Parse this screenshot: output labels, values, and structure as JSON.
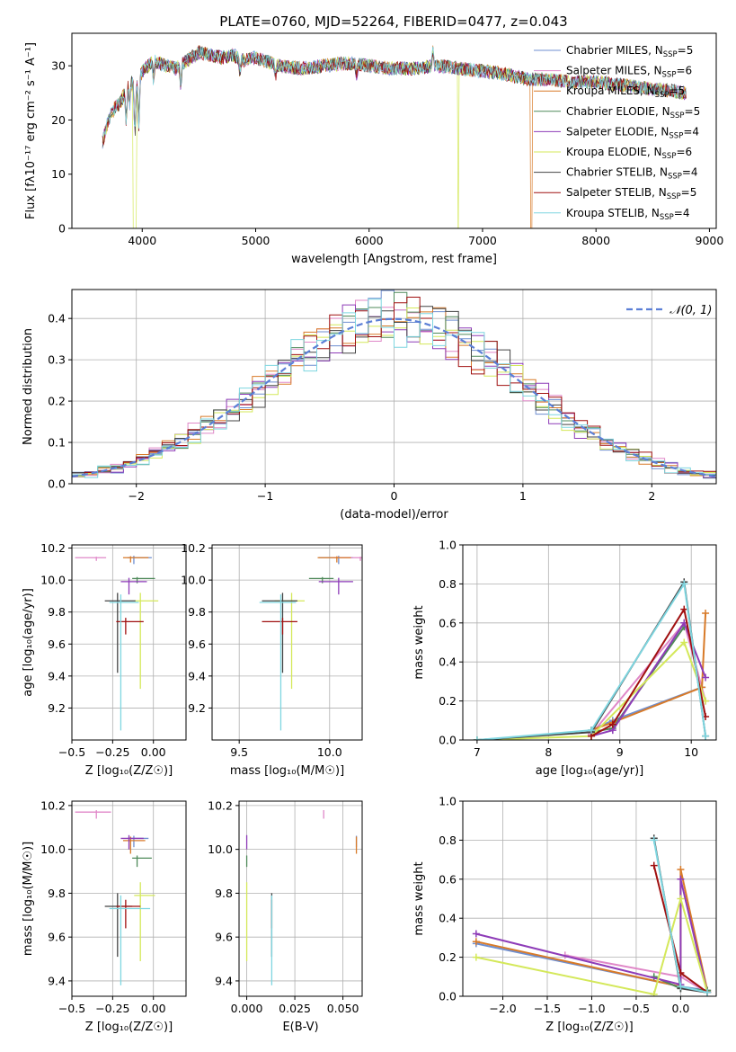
{
  "figure_title": "PLATE=0760, MJD=52264, FIBERID=0477, z=0.043",
  "colors": {
    "Chabrier MILES": "#6f8fd0",
    "Salpeter MILES": "#e088c8",
    "Kroupa MILES": "#d87a28",
    "Chabrier ELODIE": "#4f8a5a",
    "Salpeter ELODIE": "#8e3cb8",
    "Kroupa ELODIE": "#d4e85a",
    "Chabrier STELIB": "#444444",
    "Salpeter STELIB": "#a01010",
    "Kroupa STELIB": "#7ed6e0"
  },
  "chart_data": [
    {
      "type": "line",
      "title": "PLATE=0760, MJD=52264, FIBERID=0477, z=0.043",
      "xlabel": "wavelength [Angstrom, rest frame]",
      "ylabel": "Flux [fλ10⁻¹⁷ erg cm⁻² s⁻¹ A⁻¹]",
      "xlim": [
        3380,
        9060
      ],
      "ylim": [
        0,
        36
      ],
      "xticks": [
        4000,
        5000,
        6000,
        7000,
        8000,
        9000
      ],
      "yticks": [
        0,
        10,
        20,
        30
      ],
      "grid": false,
      "legend_placement": "top-right",
      "legend": [
        {
          "name": "Chabrier MILES",
          "sub": "SSP",
          "n": "5"
        },
        {
          "name": "Salpeter MILES",
          "sub": "SSP",
          "n": "6"
        },
        {
          "name": "Kroupa MILES",
          "sub": "SSP",
          "n": "5"
        },
        {
          "name": "Chabrier ELODIE",
          "sub": "SSP",
          "n": "5"
        },
        {
          "name": "Salpeter ELODIE",
          "sub": "SSP",
          "n": "4"
        },
        {
          "name": "Kroupa ELODIE",
          "sub": "SSP",
          "n": "6"
        },
        {
          "name": "Chabrier STELIB",
          "sub": "SSP",
          "n": "4"
        },
        {
          "name": "Salpeter STELIB",
          "sub": "SSP",
          "n": "5"
        },
        {
          "name": "Kroupa STELIB",
          "sub": "SSP",
          "n": "4"
        }
      ],
      "spectrum_envelope": {
        "x": [
          3650,
          3700,
          3750,
          3800,
          3850,
          3900,
          3950,
          4000,
          4050,
          4100,
          4200,
          4300,
          4400,
          4500,
          4600,
          4700,
          4800,
          4900,
          5000,
          5200,
          5400,
          5600,
          5800,
          6000,
          6200,
          6400,
          6600,
          6800,
          7000,
          7200,
          7400,
          7600,
          7800,
          8000,
          8200,
          8400,
          8600,
          8800
        ],
        "y": [
          16,
          20,
          22,
          23,
          25,
          27,
          26,
          29,
          30,
          31,
          30,
          29.5,
          31,
          32.5,
          32,
          31.5,
          32,
          31,
          31.5,
          30,
          29.5,
          30,
          30.5,
          30,
          29.5,
          29.5,
          30,
          29.5,
          29,
          28.5,
          27.5,
          27.5,
          27,
          27,
          26.5,
          26,
          25.5,
          25
        ]
      },
      "dropouts": [
        {
          "x_start": 3920,
          "x_end": 3950,
          "series": "Kroupa ELODIE"
        },
        {
          "x_start": 6780,
          "x_end": 6790,
          "series": "Kroupa ELODIE"
        },
        {
          "x_start": 7420,
          "x_end": 7440,
          "series": "Kroupa MILES"
        }
      ]
    },
    {
      "type": "bar",
      "xlabel": "(data-model)/error",
      "ylabel": "Normed distribution",
      "xlim": [
        -2.5,
        2.5
      ],
      "ylim": [
        0,
        0.47
      ],
      "xticks": [
        -2,
        -1,
        0,
        1,
        2
      ],
      "yticks": [
        0.0,
        0.1,
        0.2,
        0.3,
        0.4
      ],
      "grid": true,
      "legend_placement": "top-right",
      "legend": [
        {
          "name": "𝒩(0, 1)"
        }
      ],
      "bin_width": 0.1,
      "bins_start": -2.5,
      "histogram_series": 9
    },
    {
      "type": "scatter",
      "xlabel": "Z [log₁₀(Z/Z☉)]",
      "ylabel": "age  [log₁₀(age/yr)]",
      "xlim": [
        -0.5,
        0.2
      ],
      "ylim": [
        9.0,
        10.22
      ],
      "xticks": [
        -0.5,
        -0.25,
        0.0
      ],
      "yticks": [
        9.2,
        9.4,
        9.6,
        9.8,
        10.0,
        10.2
      ],
      "grid": true
    },
    {
      "type": "scatter",
      "xlabel": "mass [log₁₀(M/M☉)]",
      "xlim": [
        9.35,
        10.18
      ],
      "ylim": [
        9.0,
        10.22
      ],
      "xticks": [
        9.5,
        10.0
      ],
      "yticks": [
        9.2,
        9.4,
        9.6,
        9.8,
        10.0,
        10.2
      ],
      "grid": true
    },
    {
      "type": "line",
      "xlabel": "age  [log₁₀(age/yr)]",
      "ylabel": "mass weight",
      "xlim": [
        6.8,
        10.35
      ],
      "ylim": [
        0,
        1.0
      ],
      "xticks": [
        7,
        8,
        9,
        10
      ],
      "yticks": [
        0.0,
        0.2,
        0.4,
        0.6,
        0.8,
        1.0
      ],
      "grid": true
    },
    {
      "type": "scatter",
      "xlabel": "Z [log₁₀(Z/Z☉)]",
      "ylabel": "mass [log₁₀(M/M☉)]",
      "xlim": [
        -0.5,
        0.2
      ],
      "ylim": [
        9.33,
        10.22
      ],
      "xticks": [
        -0.5,
        -0.25,
        0.0
      ],
      "yticks": [
        9.4,
        9.6,
        9.8,
        10.0,
        10.2
      ],
      "grid": true
    },
    {
      "type": "scatter",
      "xlabel": "E(B-V)",
      "xlim": [
        -0.004,
        0.06
      ],
      "ylim": [
        9.33,
        10.22
      ],
      "xticks": [
        0.0,
        0.025,
        0.05
      ],
      "yticks": [
        9.4,
        9.6,
        9.8,
        10.0,
        10.2
      ],
      "grid": true
    },
    {
      "type": "line",
      "xlabel": "Z [log₁₀(Z/Z☉)]",
      "ylabel": "mass weight",
      "xlim": [
        -2.45,
        0.4
      ],
      "ylim": [
        0,
        1.0
      ],
      "xticks": [
        -2.0,
        -1.5,
        -1.0,
        -0.5,
        0.0
      ],
      "yticks": [
        0.0,
        0.2,
        0.4,
        0.6,
        0.8,
        1.0
      ],
      "grid": true
    }
  ],
  "fits": [
    {
      "name": "Chabrier MILES",
      "Z": -0.12,
      "age": 10.14,
      "age_err": 0.04,
      "mass": 10.05,
      "mass_err": 0.04,
      "ebv": 0.057,
      "ages": [
        8.6,
        8.9,
        10.15
      ],
      "ages_w": [
        0.05,
        0.1,
        0.27
      ],
      "zs": [
        -2.3,
        0.0,
        0.3
      ],
      "zs_w": [
        0.27,
        0.05,
        0.03
      ]
    },
    {
      "name": "Salpeter MILES",
      "Z": -0.35,
      "age": 10.14,
      "age_err": 0.02,
      "mass": 10.17,
      "mass_err": 0.03,
      "ebv": 0.04,
      "ages": [
        8.6,
        9.9,
        10.2
      ],
      "ages_w": [
        0.03,
        0.6,
        0.2
      ],
      "zs": [
        -1.3,
        0.0,
        0.3
      ],
      "zs_w": [
        0.21,
        0.1,
        0.02
      ]
    },
    {
      "name": "Kroupa MILES",
      "Z": -0.14,
      "age": 10.14,
      "age_err": 0.03,
      "mass": 10.04,
      "mass_err": 0.06,
      "ebv": 0.057,
      "ages": [
        8.6,
        8.9,
        10.15,
        10.2
      ],
      "ages_w": [
        0.05,
        0.09,
        0.27,
        0.65
      ],
      "zs": [
        -2.3,
        0.0,
        0.0,
        0.3
      ],
      "zs_w": [
        0.28,
        0.05,
        0.65,
        0.03
      ]
    },
    {
      "name": "Chabrier ELODIE",
      "Z": -0.1,
      "age": 10.01,
      "age_err": 0.03,
      "mass": 9.96,
      "mass_err": 0.04,
      "ebv": 0.0,
      "ages": [
        8.6,
        8.9,
        9.9
      ],
      "ages_w": [
        0.04,
        0.06,
        0.58
      ],
      "zs": [
        -0.3,
        0.0,
        0.3
      ],
      "zs_w": [
        0.1,
        0.04,
        0.03
      ]
    },
    {
      "name": "Salpeter ELODIE",
      "Z": -0.15,
      "age": 9.99,
      "age_err": 0.08,
      "mass": 10.05,
      "mass_err": 0.05,
      "ebv": 0.0,
      "ages": [
        8.6,
        8.9,
        9.9,
        10.2
      ],
      "ages_w": [
        0.02,
        0.05,
        0.6,
        0.32
      ],
      "zs": [
        -2.3,
        0.0,
        0.0,
        0.3
      ],
      "zs_w": [
        0.32,
        0.06,
        0.6,
        0.02
      ]
    },
    {
      "name": "Kroupa ELODIE",
      "Z": -0.08,
      "age": 9.87,
      "age_err": 0.55,
      "mass": 9.79,
      "mass_err": 0.3,
      "ebv": 0.0,
      "ages": [
        7.0,
        8.6,
        9.9,
        10.2
      ],
      "ages_w": [
        0.0,
        0.02,
        0.5,
        0.2
      ],
      "zs": [
        -2.3,
        -0.3,
        0.0,
        0.3
      ],
      "zs_w": [
        0.2,
        0.01,
        0.5,
        0.02
      ]
    },
    {
      "name": "Chabrier STELIB",
      "Z": -0.22,
      "age": 9.87,
      "age_err": 0.45,
      "mass": 9.74,
      "mass_err": 0.23,
      "ebv": 0.013,
      "ages": [
        7.0,
        8.6,
        9.9,
        10.2
      ],
      "ages_w": [
        0.0,
        0.04,
        0.81,
        0.02
      ],
      "zs": [
        -0.3,
        0.0,
        0.3
      ],
      "zs_w": [
        0.81,
        0.04,
        0.02
      ]
    },
    {
      "name": "Salpeter STELIB",
      "Z": -0.17,
      "age": 9.74,
      "age_err": 0.08,
      "mass": 9.74,
      "mass_err": 0.1,
      "ebv": 0.013,
      "ages": [
        8.6,
        8.9,
        9.9,
        10.2
      ],
      "ages_w": [
        0.02,
        0.08,
        0.67,
        0.12
      ],
      "zs": [
        -0.3,
        0.0,
        0.3
      ],
      "zs_w": [
        0.67,
        0.12,
        0.02
      ]
    },
    {
      "name": "Kroupa STELIB",
      "Z": -0.2,
      "age": 9.86,
      "age_err": 0.8,
      "mass": 9.73,
      "mass_err": 0.35,
      "ebv": 0.013,
      "ages": [
        7.0,
        8.6,
        9.9,
        10.2
      ],
      "ages_w": [
        0.0,
        0.05,
        0.8,
        0.02
      ],
      "zs": [
        -0.3,
        0.0,
        0.3
      ],
      "zs_w": [
        0.8,
        0.05,
        0.02
      ]
    }
  ]
}
